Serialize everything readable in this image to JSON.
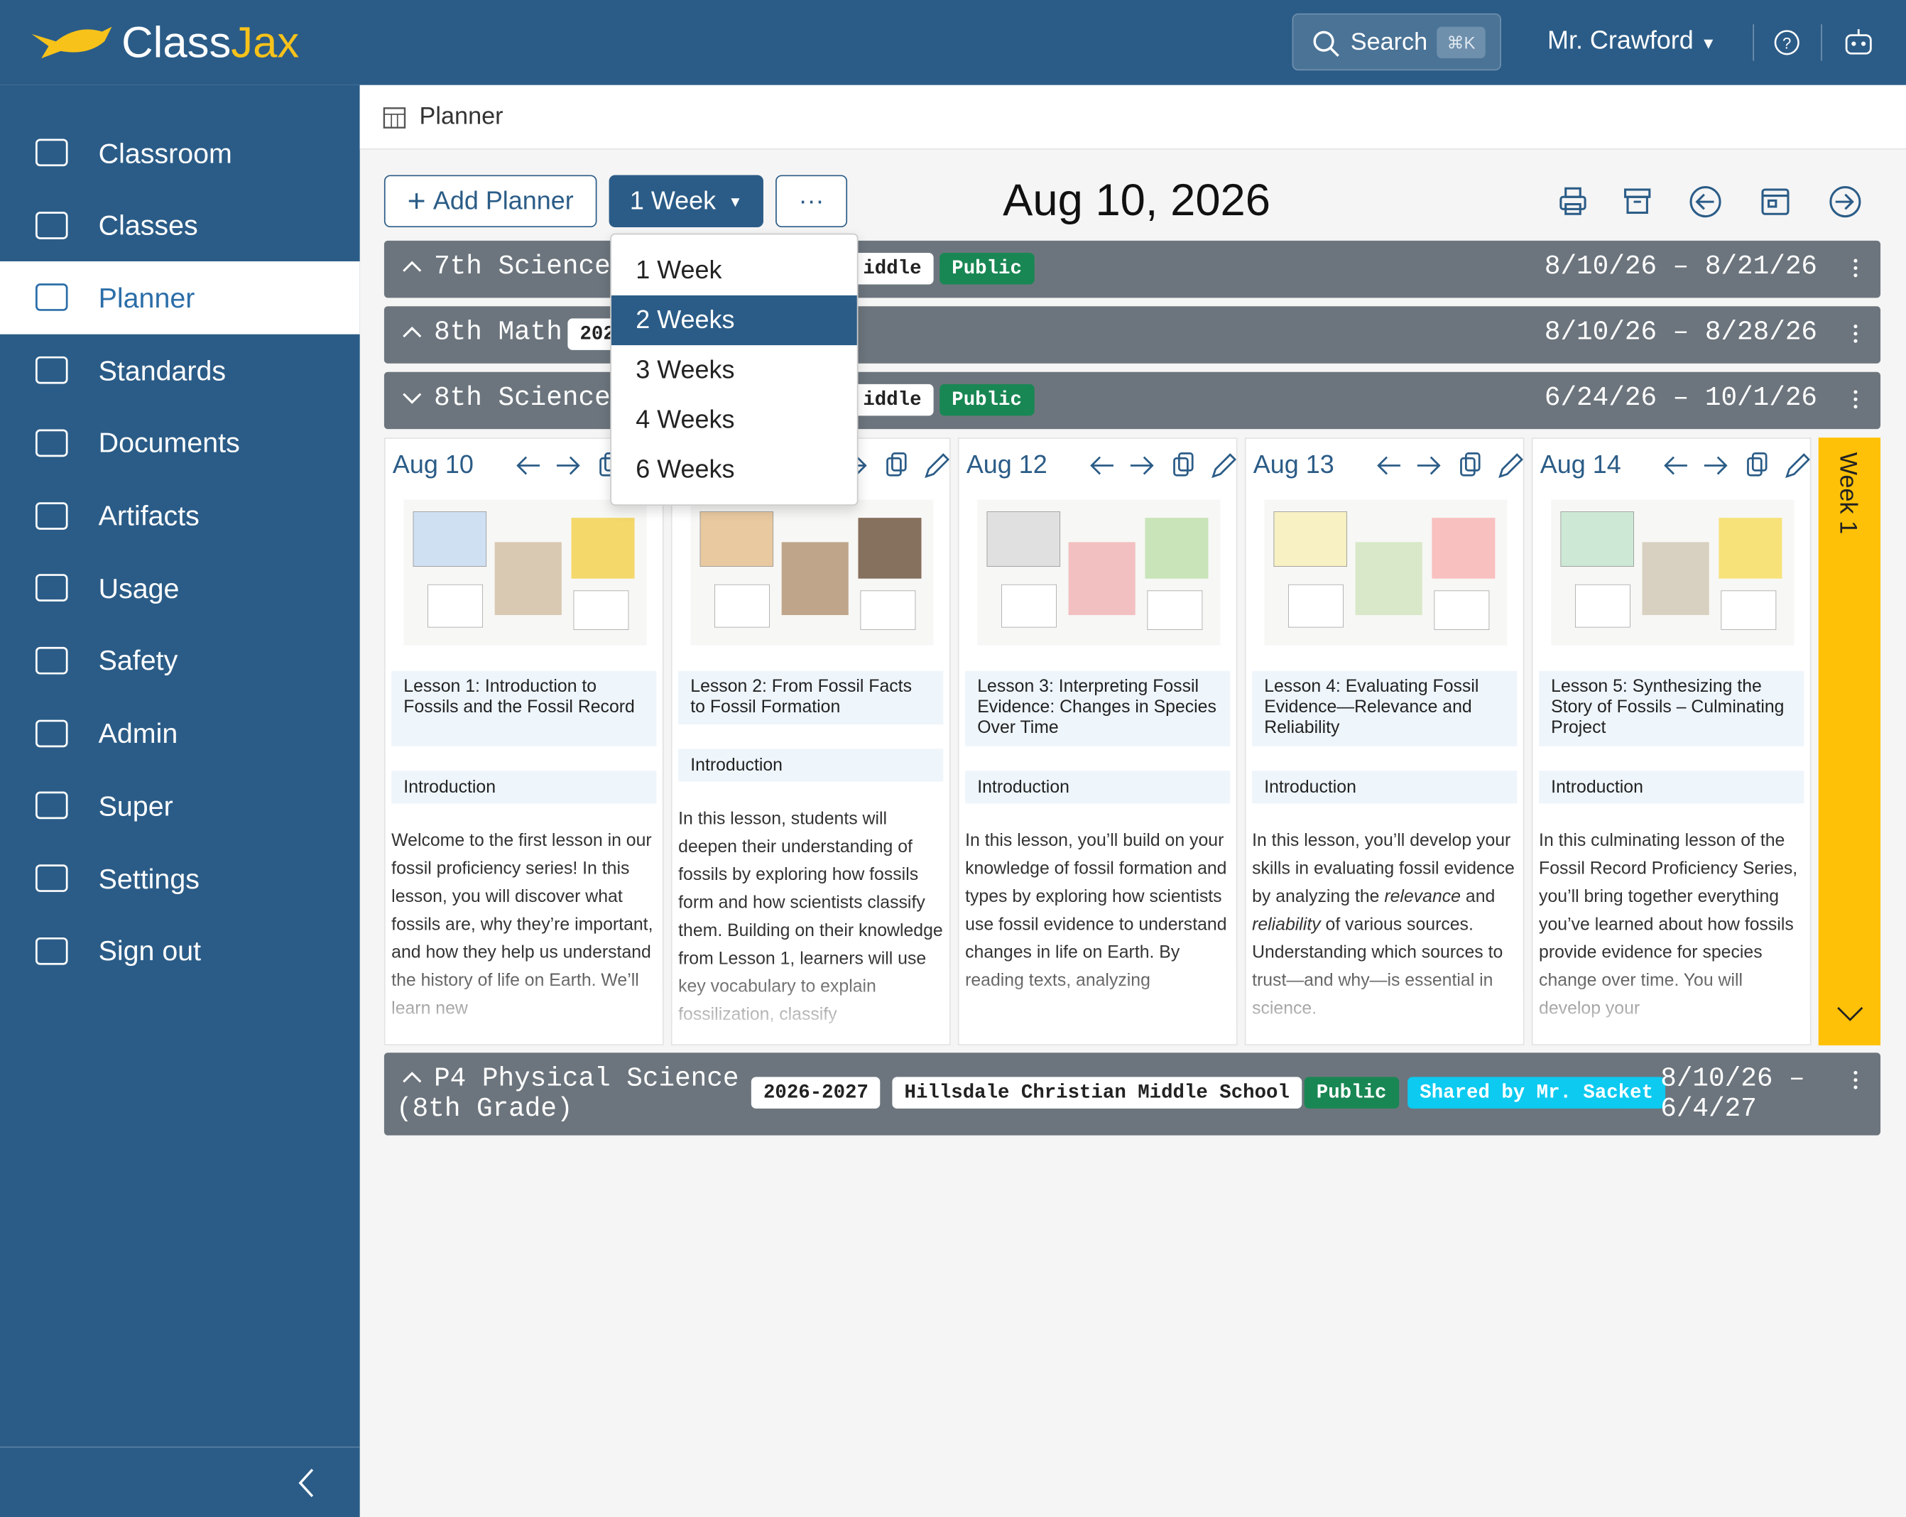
{
  "header": {
    "brand_a": "Class",
    "brand_b": "Jax",
    "search": "Search",
    "shortcut": "⌘K",
    "user": "Mr. Crawford"
  },
  "sidebar": {
    "items": [
      "Classroom",
      "Classes",
      "Planner",
      "Standards",
      "Documents",
      "Artifacts",
      "Usage",
      "Safety",
      "Admin",
      "Super",
      "Settings",
      "Sign out"
    ],
    "active": 2
  },
  "breadcrumb": "Planner",
  "toolbar": {
    "add": "Add Planner",
    "range": "1 Week",
    "more": "···",
    "date": "Aug 10, 2026"
  },
  "dropdown": {
    "items": [
      "1 Week",
      "2 Weeks",
      "3 Weeks",
      "4 Weeks",
      "6 Weeks"
    ],
    "active": 1
  },
  "planners": [
    {
      "title": "7th Science",
      "badges": [
        {
          "text": "iddle",
          "kind": "light"
        },
        {
          "text": "Public",
          "kind": "green"
        }
      ],
      "dates": "8/10/26 – 8/21/26"
    },
    {
      "title": "8th Math",
      "badges": [
        {
          "text": "202",
          "kind": "light"
        }
      ],
      "dates": "8/10/26 – 8/28/26"
    },
    {
      "title": "8th Science",
      "badges": [
        {
          "text": "iddle",
          "kind": "light"
        },
        {
          "text": "Public",
          "kind": "green"
        }
      ],
      "dates": "6/24/26 – 10/1/26"
    }
  ],
  "week": {
    "label": "Week 1",
    "days": [
      {
        "date": "Aug 10",
        "lesson": "Lesson 1: Introduction to Fossils and the Fossil Record",
        "section": "Introduction",
        "text": [
          "Welcome to the first lesson in our fossil proficiency series! In this lesson, you will discover what fossils are, why they’re important, and how they help us understand the history of life on Earth. We’ll learn new"
        ]
      },
      {
        "date": null,
        "lesson": "Lesson 2: From Fossil Facts to Fossil Formation",
        "section": "Introduction",
        "text": [
          "In this lesson, students will deepen their understanding of fossils by exploring how fossils form and how scientists classify them. Building on their knowledge from Lesson 1, learners will use key vocabulary to explain fossilization, classify"
        ]
      },
      {
        "date": "Aug 12",
        "lesson": "Lesson 3: Interpreting Fossil Evidence: Changes in Species Over Time",
        "section": "Introduction",
        "text": [
          "In this lesson, you’ll build on your knowledge of fossil formation and types by exploring how scientists use fossil evidence to understand changes in life on Earth. By reading texts, analyzing"
        ]
      },
      {
        "date": "Aug 13",
        "lesson": "Lesson 4: Evaluating Fossil Evidence—Relevance and Reliability",
        "section": "Introduction",
        "text": [
          "In this lesson, you’ll develop your skills in evaluating fossil evidence by analyzing the ",
          "relevance",
          " and ",
          "reliability",
          " of various sources. Understanding which sources to trust—and why—is essential in science."
        ]
      },
      {
        "date": "Aug 14",
        "lesson": "Lesson 5: Synthesizing the Story of Fossils – Culminating Project",
        "section": "Introduction",
        "text": [
          "In this culminating lesson of the Fossil Record Proficiency Series, you’ll bring together everything you’ve learned about how fossils provide evidence for species change over time. You will develop your"
        ]
      }
    ]
  },
  "footer_planner": {
    "title": "P4 Physical Science (8th Grade)",
    "badges": [
      {
        "text": "2026-2027",
        "kind": "light"
      },
      {
        "text": "Hillsdale Christian Middle School",
        "kind": "light"
      },
      {
        "text": "Public",
        "kind": "green"
      },
      {
        "text": "Shared by Mr. Sacket",
        "kind": "cyan"
      }
    ],
    "dates": "8/10/26 – 6/4/27"
  }
}
